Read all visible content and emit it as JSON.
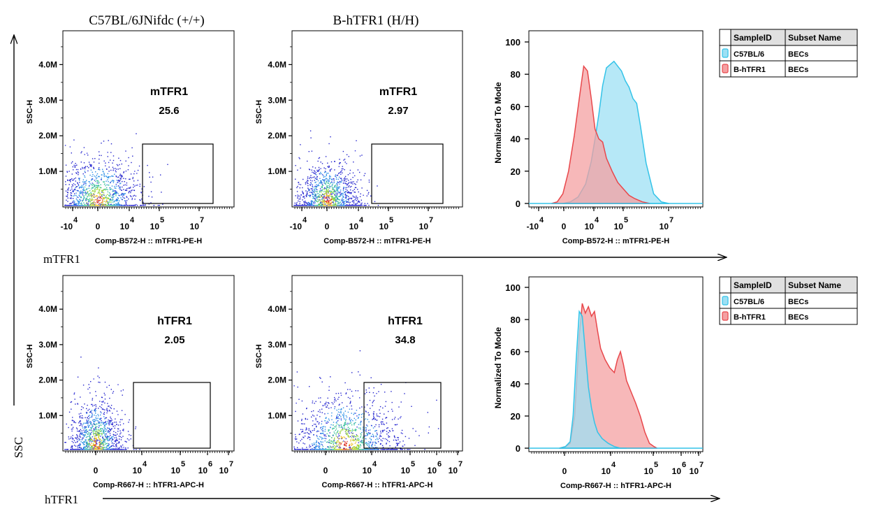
{
  "column_titles": [
    "C57BL/6JNifdc (+/+)",
    "B-hTFR1 (H/H)"
  ],
  "row_axis_labels": [
    "mTFR1",
    "hTFR1"
  ],
  "y_axis_label": "SSC",
  "chart_data": [
    {
      "type": "scatter",
      "panel": "row1-col1",
      "xlabel": "Comp-B572-H :: mTFR1-PE-H",
      "ylabel": "SSC-H",
      "yticks": [
        "1.0M",
        "2.0M",
        "3.0M",
        "4.0M"
      ],
      "xticks": [
        {
          "base": "-10",
          "exp": "4"
        },
        {
          "base": "0",
          "exp": ""
        },
        {
          "base": "10",
          "exp": "4"
        },
        {
          "base": "10",
          "exp": "5"
        },
        {
          "base": "10",
          "exp": "7"
        }
      ],
      "gate": {
        "name": "mTFR1",
        "value": "25.6"
      },
      "cluster": {
        "x_center": 0,
        "ssc_center_M": 0.4,
        "x_spread": 1,
        "y_spread_M": 1.1
      }
    },
    {
      "type": "scatter",
      "panel": "row1-col2",
      "xlabel": "Comp-B572-H :: mTFR1-PE-H",
      "ylabel": "SSC-H",
      "yticks": [
        "1.0M",
        "2.0M",
        "3.0M",
        "4.0M"
      ],
      "xticks": [
        {
          "base": "-10",
          "exp": "4"
        },
        {
          "base": "0",
          "exp": ""
        },
        {
          "base": "10",
          "exp": "4"
        },
        {
          "base": "10",
          "exp": "5"
        },
        {
          "base": "10",
          "exp": "7"
        }
      ],
      "gate": {
        "name": "mTFR1",
        "value": "2.97"
      },
      "cluster": {
        "x_center": 0,
        "ssc_center_M": 0.4,
        "x_spread": 0.7,
        "y_spread_M": 1.0
      }
    },
    {
      "type": "area",
      "panel": "row1-histogram",
      "xlabel": "Comp-B572-H :: mTFR1-PE-H",
      "ylabel": "Normalized To Mode",
      "ylim": [
        0,
        100
      ],
      "yticks": [
        "0",
        "20",
        "40",
        "60",
        "80",
        "100"
      ],
      "xticks": [
        {
          "base": "-10",
          "exp": "4"
        },
        {
          "base": "0",
          "exp": ""
        },
        {
          "base": "10",
          "exp": "4"
        },
        {
          "base": "10",
          "exp": "5"
        },
        {
          "base": "10",
          "exp": "7"
        }
      ],
      "legend": {
        "headers": [
          "SampleID",
          "Subset Name"
        ],
        "rows": [
          [
            "C57BL/6",
            "BECs"
          ],
          [
            "B-hTFR1",
            "BECs"
          ]
        ]
      },
      "series": [
        {
          "name": "C57BL/6",
          "color": "#33C3E8",
          "fill": "#9EE0F4",
          "x": [
            0.3,
            0.5,
            0.7,
            0.9,
            1.05,
            1.15,
            1.25,
            1.35,
            1.45,
            1.55,
            1.65,
            1.75,
            1.85,
            1.95,
            2.05,
            2.15,
            2.25,
            2.35,
            2.5,
            2.7,
            2.9,
            3.1
          ],
          "values": [
            0,
            1,
            4,
            12,
            26,
            40,
            55,
            73,
            84,
            86,
            88,
            85,
            82,
            76,
            72,
            65,
            62,
            48,
            25,
            6,
            1,
            0
          ]
        },
        {
          "name": "B-hTFR1",
          "color": "#E8474B",
          "fill": "#F4A0A2",
          "x": [
            0.0,
            0.15,
            0.3,
            0.45,
            0.6,
            0.75,
            0.85,
            0.95,
            1.05,
            1.15,
            1.25,
            1.35,
            1.45,
            1.6,
            1.75,
            1.9,
            2.05,
            2.2,
            2.4,
            2.6
          ],
          "values": [
            0,
            1,
            6,
            20,
            42,
            68,
            85,
            82,
            65,
            46,
            40,
            38,
            28,
            20,
            13,
            9,
            5,
            3,
            1,
            0
          ]
        }
      ]
    },
    {
      "type": "scatter",
      "panel": "row2-col1",
      "xlabel": "Comp-R667-H :: hTFR1-APC-H",
      "ylabel": "SSC-H",
      "yticks": [
        "1.0M",
        "2.0M",
        "3.0M",
        "4.0M"
      ],
      "xticks": [
        {
          "base": "0",
          "exp": ""
        },
        {
          "base": "10",
          "exp": "4"
        },
        {
          "base": "10",
          "exp": "5"
        },
        {
          "base": "10",
          "exp": "6"
        },
        {
          "base": "10",
          "exp": "7"
        }
      ],
      "gate": {
        "name": "hTFR1",
        "value": "2.05"
      },
      "cluster": {
        "x_center": 0,
        "ssc_center_M": 0.35,
        "x_spread": 0.5,
        "y_spread_M": 1.2
      }
    },
    {
      "type": "scatter",
      "panel": "row2-col2",
      "xlabel": "Comp-R667-H :: hTFR1-APC-H",
      "ylabel": "SSC-H",
      "yticks": [
        "1.0M",
        "2.0M",
        "3.0M",
        "4.0M"
      ],
      "xticks": [
        {
          "base": "0",
          "exp": ""
        },
        {
          "base": "10",
          "exp": "4"
        },
        {
          "base": "10",
          "exp": "5"
        },
        {
          "base": "10",
          "exp": "6"
        },
        {
          "base": "10",
          "exp": "7"
        }
      ],
      "gate": {
        "name": "hTFR1",
        "value": "34.8"
      },
      "cluster": {
        "x_center": 1,
        "ssc_center_M": 0.4,
        "x_spread": 1.4,
        "y_spread_M": 1.3
      }
    },
    {
      "type": "area",
      "panel": "row2-histogram",
      "xlabel": "Comp-R667-H :: hTFR1-APC-H",
      "ylabel": "Normalized To Mode",
      "ylim": [
        0,
        100
      ],
      "yticks": [
        "0",
        "20",
        "40",
        "60",
        "80",
        "100"
      ],
      "xticks": [
        {
          "base": "0",
          "exp": ""
        },
        {
          "base": "10",
          "exp": "4"
        },
        {
          "base": "10",
          "exp": "5"
        },
        {
          "base": "10",
          "exp": "6"
        },
        {
          "base": "10",
          "exp": "7"
        }
      ],
      "legend": {
        "headers": [
          "SampleID",
          "Subset Name"
        ],
        "rows": [
          [
            "C57BL/6",
            "BECs"
          ],
          [
            "B-hTFR1",
            "BECs"
          ]
        ]
      },
      "series": [
        {
          "name": "C57BL/6",
          "color": "#33C3E8",
          "fill": "#9EE0F4",
          "x": [
            -0.2,
            0.0,
            0.15,
            0.25,
            0.35,
            0.45,
            0.55,
            0.65,
            0.75,
            0.85,
            0.95,
            1.05,
            1.2,
            1.4,
            1.6,
            1.8,
            2.0
          ],
          "values": [
            0,
            1,
            4,
            20,
            55,
            85,
            82,
            60,
            38,
            25,
            16,
            10,
            6,
            3,
            1,
            0,
            0
          ]
        },
        {
          "name": "B-hTFR1",
          "color": "#E8474B",
          "fill": "#F4A0A2",
          "x": [
            -0.2,
            0.0,
            0.15,
            0.3,
            0.45,
            0.55,
            0.65,
            0.75,
            0.85,
            0.95,
            1.05,
            1.15,
            1.3,
            1.45,
            1.6,
            1.7,
            1.8,
            1.9,
            2.0,
            2.15,
            2.3,
            2.45,
            2.6,
            2.75,
            2.9,
            3.0
          ],
          "values": [
            0,
            1,
            3,
            20,
            70,
            90,
            84,
            88,
            82,
            85,
            73,
            62,
            55,
            50,
            47,
            55,
            60,
            52,
            42,
            35,
            28,
            20,
            10,
            3,
            1,
            0
          ]
        }
      ]
    }
  ]
}
